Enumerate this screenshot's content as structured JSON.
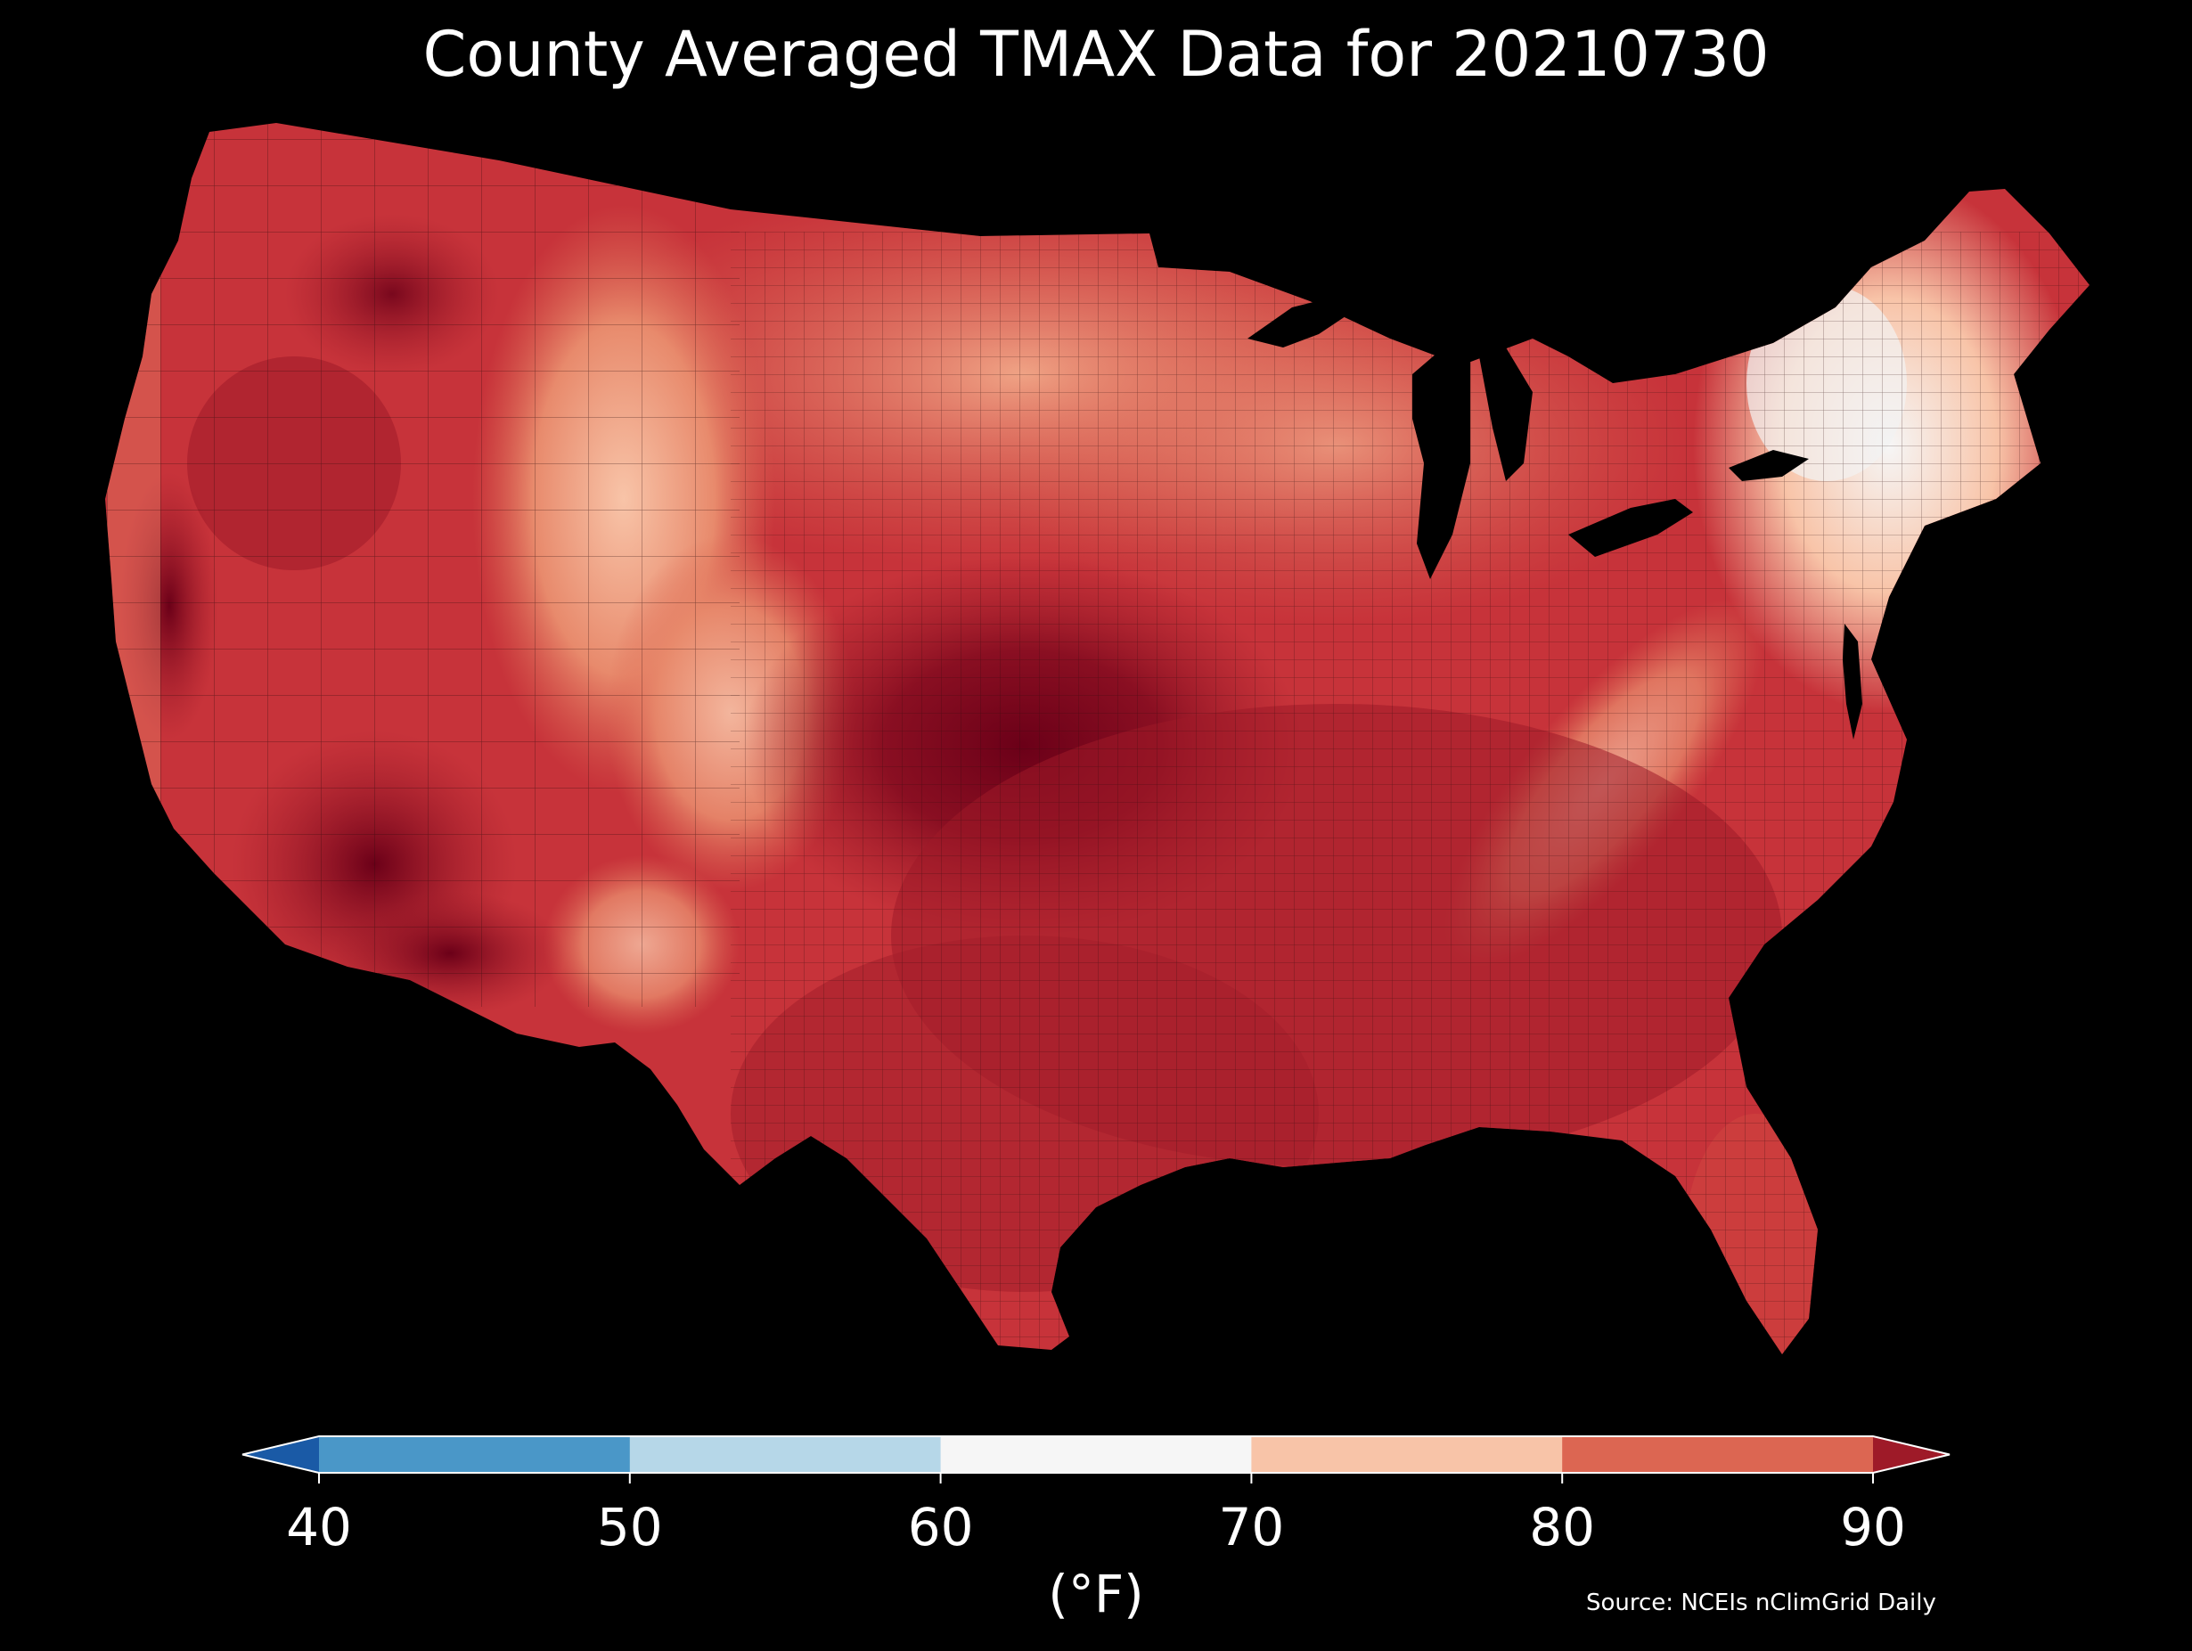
{
  "title": "County Averaged TMAX Data for 20210730",
  "source": "Source: NCEIs nClimGrid Daily",
  "colorbar": {
    "unit_label": "(°F)",
    "ticks": [
      "40",
      "50",
      "60",
      "70",
      "80",
      "90"
    ],
    "bins": [
      {
        "min": null,
        "max": 40,
        "color": "#1a5aa6"
      },
      {
        "min": 40,
        "max": 50,
        "color": "#4a97c8"
      },
      {
        "min": 50,
        "max": 60,
        "color": "#b6d7e8"
      },
      {
        "min": 60,
        "max": 70,
        "color": "#f6f6f6"
      },
      {
        "min": 70,
        "max": 80,
        "color": "#f8c4a8"
      },
      {
        "min": 80,
        "max": 90,
        "color": "#dc6652"
      },
      {
        "min": 90,
        "max": null,
        "color": "#9e1a28"
      }
    ]
  },
  "map": {
    "region": "Contiguous United States",
    "background": "#000000",
    "palette": {
      "above_90": "#9e1a28",
      "extreme": "#6b0018",
      "80_90": "#dc6652",
      "70_80": "#f8c4a8",
      "60_70": "#f6f6f6",
      "border": "#2a0a0a"
    }
  }
}
